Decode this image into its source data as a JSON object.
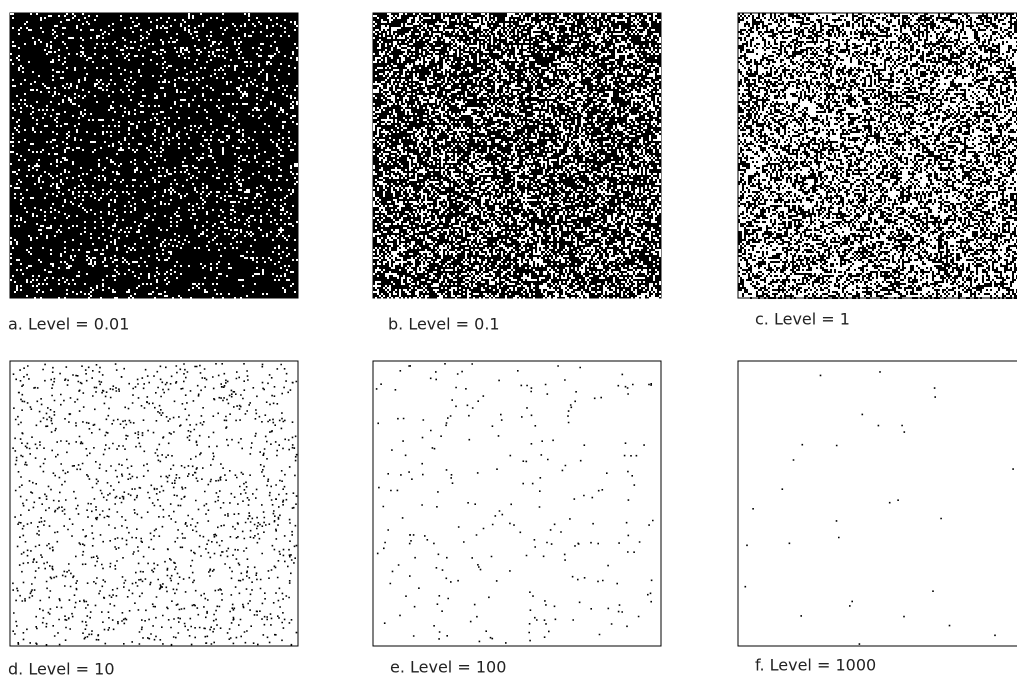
{
  "panels": [
    {
      "caption": "a. Level = 0.01"
    },
    {
      "caption": "b. Level = 0.1"
    },
    {
      "caption": "c. Level = 1"
    },
    {
      "caption": "d. Level = 10"
    },
    {
      "caption": "e. Level = 100"
    },
    {
      "caption": "f. Level = 1000"
    }
  ]
}
